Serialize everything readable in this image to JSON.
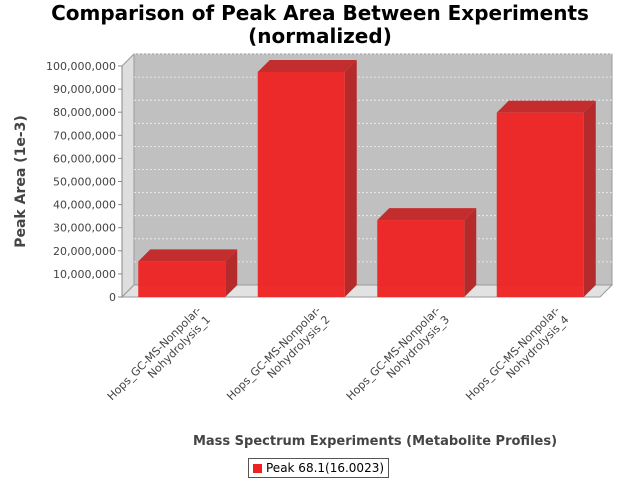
{
  "chart_data": {
    "type": "bar",
    "title": "Comparison of Peak Area Between Experiments",
    "subtitle": "(normalized)",
    "xlabel": "Mass Spectrum Experiments (Metabolite Profiles)",
    "ylabel": "Peak Area (1e-3)",
    "categories": [
      "Hops_GC-MS-Nonpolar-Nohydrolysis_1",
      "Hops_GC-MS-Nonpolar-Nohydrolysis_2",
      "Hops_GC-MS-Nonpolar-Nohydrolysis_3",
      "Hops_GC-MS-Nonpolar-Nohydrolysis_4"
    ],
    "category_label_lines": [
      [
        "Hops_GC-MS-Nonpolar-",
        "Nohydrolysis_1"
      ],
      [
        "Hops_GC-MS-Nonpolar-",
        "Nohydrolysis_2"
      ],
      [
        "Hops_GC-MS-Nonpolar-",
        "Nohydrolysis_3"
      ],
      [
        "Hops_GC-MS-Nonpolar-",
        "Nohydrolysis_4"
      ]
    ],
    "series": [
      {
        "name": "Peak 68.1(16.0023)",
        "values": [
          15400000,
          97400000,
          33300000,
          79800000
        ],
        "color": "#ee2222"
      }
    ],
    "ylim": [
      0,
      100000000
    ],
    "yticks": [
      0,
      10000000,
      20000000,
      30000000,
      40000000,
      50000000,
      60000000,
      70000000,
      80000000,
      90000000,
      100000000
    ],
    "ytick_labels": [
      "0",
      "10,000,000",
      "20,000,000",
      "30,000,000",
      "40,000,000",
      "50,000,000",
      "60,000,000",
      "70,000,000",
      "80,000,000",
      "90,000,000",
      "100,000,000"
    ],
    "grid": true,
    "legend_position": "bottom",
    "style": "3d",
    "plot_background": "#c0c0c0"
  }
}
